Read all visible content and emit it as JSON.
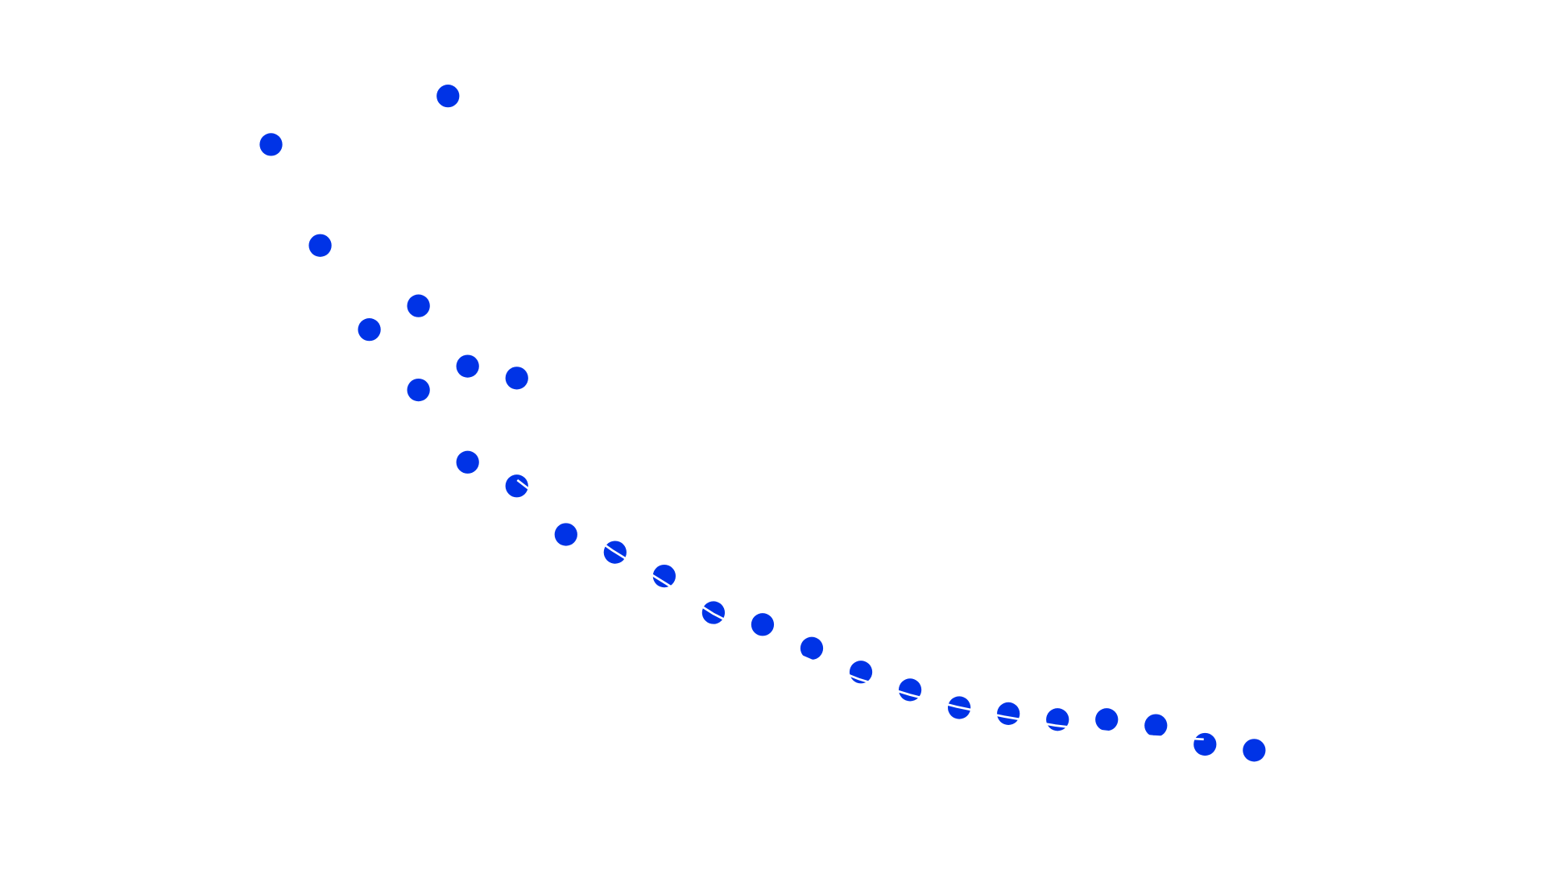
{
  "chart_data": {
    "type": "scatter",
    "title": "",
    "xlabel": "",
    "ylabel": "",
    "axes_visible": false,
    "grid": false,
    "legend": "none",
    "marker_color": "#0033e6",
    "background_color": "#ffffff",
    "overlay_line_color": "#ffffff",
    "xlim": [
      0,
      20
    ],
    "ylim": [
      4.2,
      70.3
    ],
    "points": [
      {
        "x": 0,
        "y": 65.4
      },
      {
        "x": 3.6,
        "y": 70.3
      },
      {
        "x": 1,
        "y": 55.2
      },
      {
        "x": 2,
        "y": 46.7
      },
      {
        "x": 3,
        "y": 49.1
      },
      {
        "x": 3,
        "y": 40.6
      },
      {
        "x": 4,
        "y": 43.0
      },
      {
        "x": 5,
        "y": 41.8
      },
      {
        "x": 4,
        "y": 33.3
      },
      {
        "x": 5,
        "y": 30.9
      },
      {
        "x": 6,
        "y": 26.0
      },
      {
        "x": 7,
        "y": 24.2
      },
      {
        "x": 8,
        "y": 21.8
      },
      {
        "x": 9,
        "y": 18.1
      },
      {
        "x": 10,
        "y": 16.9
      },
      {
        "x": 11,
        "y": 14.5
      },
      {
        "x": 12,
        "y": 12.1
      },
      {
        "x": 13,
        "y": 10.3
      },
      {
        "x": 14,
        "y": 8.5
      },
      {
        "x": 15,
        "y": 7.9
      },
      {
        "x": 16,
        "y": 7.3
      },
      {
        "x": 17,
        "y": 7.3
      },
      {
        "x": 18,
        "y": 6.7
      },
      {
        "x": 19,
        "y": 4.8
      },
      {
        "x": 20,
        "y": 4.2
      }
    ]
  }
}
